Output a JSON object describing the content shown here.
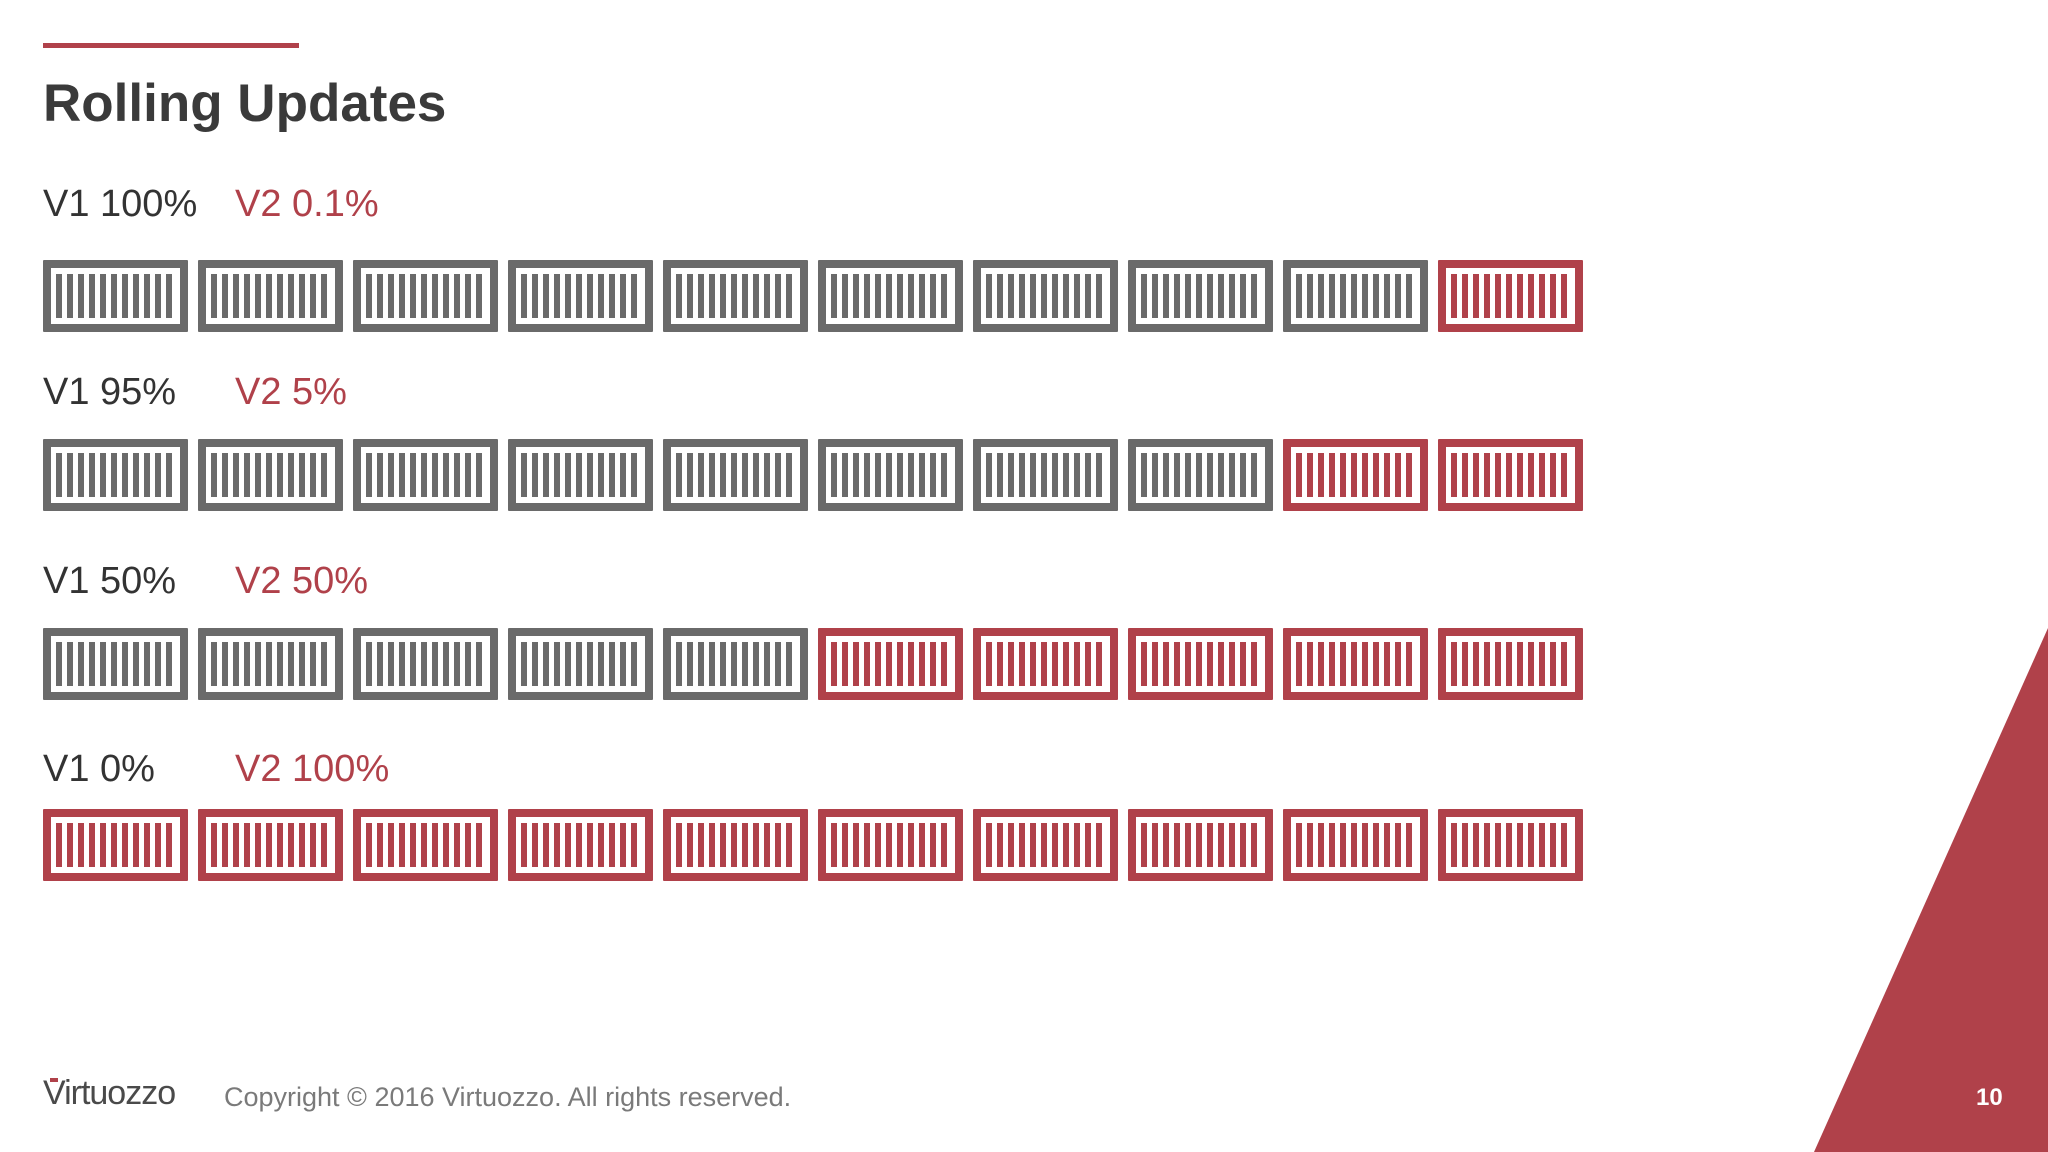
{
  "slide": {
    "title": "Rolling Updates",
    "page_number": "10"
  },
  "stages": [
    {
      "v1_label": "V1 100%",
      "v2_label": "V2 0.1%",
      "v1_share_percent": 100,
      "v2_share_percent": 0.1,
      "containers_total": 10,
      "containers_v2": 1
    },
    {
      "v1_label": "V1 95%",
      "v2_label": "V2 5%",
      "v1_share_percent": 95,
      "v2_share_percent": 5,
      "containers_total": 10,
      "containers_v2": 2
    },
    {
      "v1_label": "V1 50%",
      "v2_label": "V2 50%",
      "v1_share_percent": 50,
      "v2_share_percent": 50,
      "containers_total": 10,
      "containers_v2": 5
    },
    {
      "v1_label": "V1 0%",
      "v2_label": "V2 100%",
      "v1_share_percent": 0,
      "v2_share_percent": 100,
      "containers_total": 10,
      "containers_v2": 10
    }
  ],
  "footer": {
    "logo": "Virtuozzo",
    "copyright": "Copyright © 2016 Virtuozzo. All rights reserved."
  },
  "colors": {
    "v1": "#6a6a6a",
    "v2": "#b0414a",
    "accent": "#b0414a"
  },
  "icons": {
    "container": "container-icon"
  }
}
